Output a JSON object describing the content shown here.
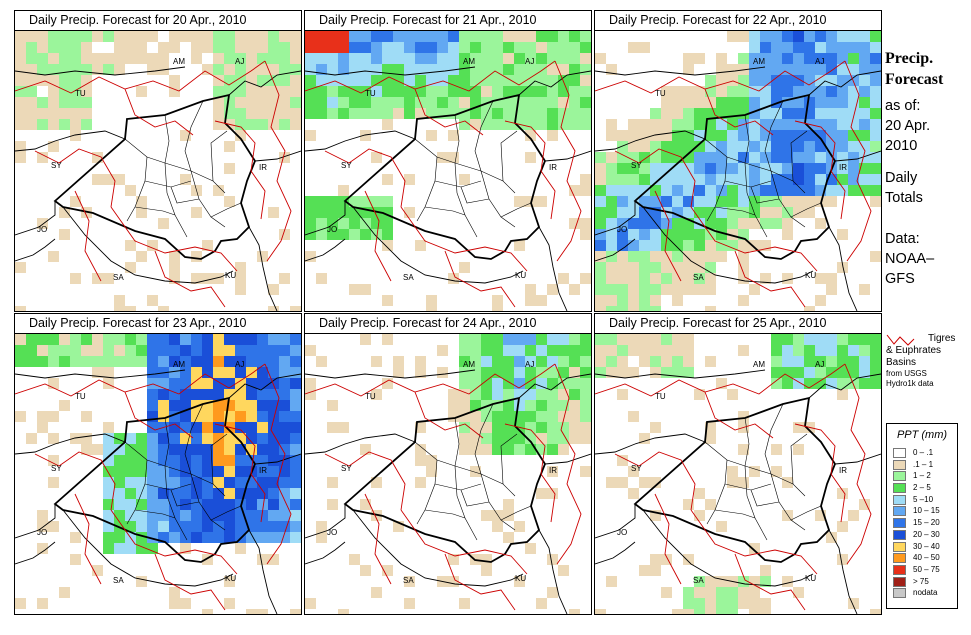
{
  "panels": [
    {
      "title": "Daily Precip. Forecast for  20 Apr., 2010",
      "day": 20
    },
    {
      "title": "Daily Precip. Forecast for  21 Apr., 2010",
      "day": 21
    },
    {
      "title": "Daily Precip. Forecast for  22 Apr., 2010",
      "day": 22
    },
    {
      "title": "Daily Precip. Forecast for  23 Apr., 2010",
      "day": 23
    },
    {
      "title": "Daily Precip. Forecast for  24 Apr., 2010",
      "day": 24
    },
    {
      "title": "Daily Precip. Forecast for  25 Apr., 2010",
      "day": 25
    }
  ],
  "country_labels": [
    "AM",
    "AJ",
    "TU",
    "SY",
    "IR",
    "JO",
    "SA",
    "KU"
  ],
  "sidebar": {
    "heading_line1": "Precip.",
    "heading_line2": "Forecast",
    "asof_line1": "as of:",
    "asof_line2": "20 Apr.",
    "asof_line3": "2010",
    "totals_line1": "Daily",
    "totals_line2": "Totals",
    "data_line1": "Data:",
    "data_line2": "NOAA–",
    "data_line3": "GFS"
  },
  "basin_legend": {
    "line1": "Tigres",
    "line2": "& Euphrates",
    "line3": "Basins",
    "line4": "from USGS",
    "line5": "Hydro1k data",
    "line_color": "#cc0000"
  },
  "legend": {
    "title": "PPT (mm)",
    "classes": [
      {
        "label": "0 – .1",
        "color": "#ffffff"
      },
      {
        "label": ".1 – 1",
        "color": "#ecd9b8"
      },
      {
        "label": "1 – 2",
        "color": "#9bf59b"
      },
      {
        "label": "2 – 5",
        "color": "#55e055"
      },
      {
        "label": "5 –10",
        "color": "#9fdcf6"
      },
      {
        "label": "10 – 15",
        "color": "#62a8f2"
      },
      {
        "label": "15 – 20",
        "color": "#2f74e8"
      },
      {
        "label": "20 – 30",
        "color": "#1a4fd8"
      },
      {
        "label": "30 – 40",
        "color": "#ffd75e"
      },
      {
        "label": "40 – 50",
        "color": "#ff9a1e"
      },
      {
        "label": "50 – 75",
        "color": "#e8301a"
      },
      {
        "label": "> 75",
        "color": "#a02018"
      },
      {
        "label": "nodata",
        "color": "#c8c8c8"
      }
    ]
  }
}
